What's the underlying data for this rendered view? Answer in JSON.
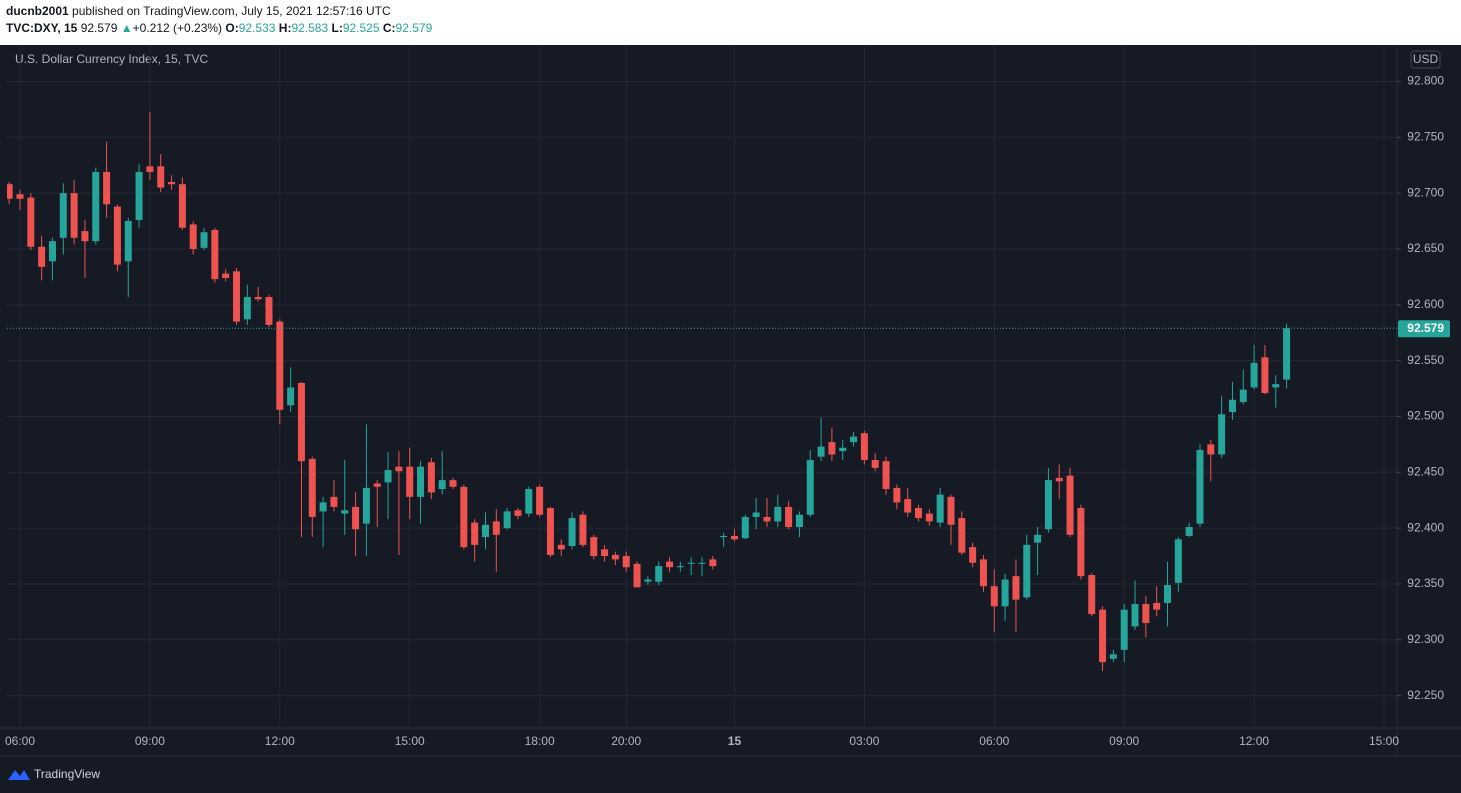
{
  "header": {
    "author": "ducnb2001",
    "published": " published on TradingView.com, July 15, 2021 12:57:16 UTC",
    "symbol": "TVC:DXY, 15",
    "price": "92.579",
    "change_arrow": "▲",
    "change": "+0.212 (+0.23%)",
    "ohlc": [
      {
        "label": "O:",
        "value": "92.533"
      },
      {
        "label": "H:",
        "value": "92.583"
      },
      {
        "label": "L:",
        "value": "92.525"
      },
      {
        "label": "C:",
        "value": "92.579"
      }
    ]
  },
  "footer": {
    "logo": "TradingView"
  },
  "chart_data": {
    "type": "candlestick",
    "title": "U.S. Dollar Currency Index, 15, TVC",
    "currency": "USD",
    "up_color": "#26a69a",
    "down_color": "#ef5350",
    "grid": true,
    "last_price": 92.579,
    "ylim": [
      92.221,
      92.83
    ],
    "yticks": [
      {
        "value": 92.25,
        "label": "92.250"
      },
      {
        "value": 92.3,
        "label": "92.300"
      },
      {
        "value": 92.35,
        "label": "92.350"
      },
      {
        "value": 92.4,
        "label": "92.400"
      },
      {
        "value": 92.45,
        "label": "92.450"
      },
      {
        "value": 92.5,
        "label": "92.500"
      },
      {
        "value": 92.55,
        "label": "92.550"
      },
      {
        "value": 92.6,
        "label": "92.600"
      },
      {
        "value": 92.65,
        "label": "92.650"
      },
      {
        "value": 92.7,
        "label": "92.700"
      },
      {
        "value": 92.75,
        "label": "92.750"
      },
      {
        "value": 92.8,
        "label": "92.800"
      }
    ],
    "xlim": [
      -0.2,
      128.2
    ],
    "xticks": [
      {
        "value": 1,
        "label": "06:00"
      },
      {
        "value": 13,
        "label": "09:00"
      },
      {
        "value": 25,
        "label": "12:00"
      },
      {
        "value": 37,
        "label": "15:00"
      },
      {
        "value": 49,
        "label": "18:00"
      },
      {
        "value": 57,
        "label": "20:00"
      },
      {
        "value": 67,
        "label": "15"
      },
      {
        "value": 79,
        "label": "03:00"
      },
      {
        "value": 91,
        "label": "06:00"
      },
      {
        "value": 103,
        "label": "09:00"
      },
      {
        "value": 115,
        "label": "12:00"
      },
      {
        "value": 127,
        "label": "15:00"
      }
    ],
    "open": [
      92.708,
      92.699,
      92.696,
      92.652,
      92.639,
      92.66,
      92.7,
      92.666,
      92.657,
      92.719,
      92.688,
      92.639,
      92.676,
      92.724,
      92.724,
      92.71,
      92.708,
      92.672,
      92.651,
      92.667,
      92.628,
      92.63,
      92.587,
      92.607,
      92.607,
      92.585,
      92.51,
      92.53,
      92.462,
      92.415,
      92.428,
      92.413,
      92.419,
      92.404,
      92.44,
      92.441,
      92.455,
      92.455,
      92.428,
      92.459,
      92.435,
      92.443,
      92.437,
      92.405,
      92.392,
      92.406,
      92.4,
      92.416,
      92.413,
      92.437,
      92.418,
      92.385,
      92.384,
      92.412,
      92.392,
      92.381,
      92.376,
      92.375,
      92.368,
      92.352,
      92.352,
      92.37,
      92.365,
      92.368,
      92.368,
      92.372,
      92.392,
      92.393,
      92.391,
      92.41,
      92.41,
      92.406,
      92.419,
      92.401,
      92.412,
      92.464,
      92.477,
      92.469,
      92.477,
      92.485,
      92.461,
      92.46,
      92.436,
      92.426,
      92.418,
      92.413,
      92.405,
      92.428,
      92.409,
      92.383,
      92.372,
      92.348,
      92.33,
      92.357,
      92.338,
      92.387,
      92.399,
      92.445,
      92.447,
      92.418,
      92.358,
      92.327,
      92.283,
      92.291,
      92.312,
      92.332,
      92.333,
      92.333,
      92.351,
      92.393,
      92.404,
      92.475,
      92.466,
      92.504,
      92.513,
      92.526,
      92.553,
      92.526,
      92.533
    ],
    "high": [
      92.71,
      92.703,
      92.7,
      92.662,
      92.66,
      92.709,
      92.712,
      92.676,
      92.723,
      92.746,
      92.69,
      92.678,
      92.726,
      92.773,
      92.735,
      92.716,
      92.714,
      92.675,
      92.669,
      92.669,
      92.632,
      92.633,
      92.618,
      92.616,
      92.609,
      92.587,
      92.544,
      92.531,
      92.464,
      92.428,
      92.443,
      92.461,
      92.432,
      92.493,
      92.443,
      92.468,
      92.469,
      92.472,
      92.46,
      92.463,
      92.469,
      92.445,
      92.439,
      92.408,
      92.414,
      92.417,
      92.418,
      92.418,
      92.437,
      92.439,
      92.419,
      92.39,
      92.414,
      92.415,
      92.394,
      92.385,
      92.379,
      92.379,
      92.37,
      92.357,
      92.37,
      92.374,
      92.37,
      92.374,
      92.374,
      92.375,
      92.396,
      92.399,
      92.412,
      92.427,
      92.427,
      92.43,
      92.424,
      92.415,
      92.47,
      92.499,
      92.49,
      92.479,
      92.486,
      92.487,
      92.467,
      92.464,
      92.439,
      92.436,
      92.421,
      92.417,
      92.436,
      92.43,
      92.415,
      92.387,
      92.376,
      92.363,
      92.359,
      92.372,
      92.394,
      92.401,
      92.454,
      92.457,
      92.454,
      92.421,
      92.36,
      92.33,
      92.291,
      92.332,
      92.353,
      92.339,
      92.348,
      92.37,
      92.392,
      92.405,
      92.475,
      92.479,
      92.518,
      92.531,
      92.542,
      92.564,
      92.564,
      92.537,
      92.583
    ],
    "low": [
      92.69,
      92.685,
      92.649,
      92.622,
      92.622,
      92.645,
      92.654,
      92.624,
      92.654,
      92.678,
      92.63,
      92.607,
      92.669,
      92.712,
      92.701,
      92.703,
      92.667,
      92.645,
      92.649,
      92.62,
      92.621,
      92.582,
      92.582,
      92.603,
      92.58,
      92.493,
      92.504,
      92.392,
      92.392,
      92.383,
      92.415,
      92.394,
      92.375,
      92.375,
      92.401,
      92.408,
      92.376,
      92.408,
      92.404,
      92.426,
      92.43,
      92.435,
      92.381,
      92.37,
      92.381,
      92.361,
      92.399,
      92.408,
      92.41,
      92.41,
      92.374,
      92.375,
      92.381,
      92.383,
      92.372,
      92.37,
      92.367,
      92.361,
      92.347,
      92.349,
      92.349,
      92.361,
      92.361,
      92.358,
      92.357,
      92.363,
      92.383,
      92.388,
      92.39,
      92.399,
      92.401,
      92.401,
      92.399,
      92.392,
      92.41,
      92.46,
      92.46,
      92.461,
      92.473,
      92.457,
      92.451,
      92.43,
      92.417,
      92.41,
      92.406,
      92.402,
      92.401,
      92.385,
      92.376,
      92.365,
      92.343,
      92.307,
      92.317,
      92.307,
      92.336,
      92.358,
      92.396,
      92.426,
      92.392,
      92.354,
      92.321,
      92.272,
      92.28,
      92.28,
      92.309,
      92.302,
      92.321,
      92.312,
      92.343,
      92.392,
      92.401,
      92.442,
      92.463,
      92.497,
      92.511,
      92.524,
      92.52,
      92.508,
      92.525
    ],
    "close": [
      92.695,
      92.695,
      92.652,
      92.634,
      92.657,
      92.7,
      92.66,
      92.657,
      92.719,
      92.69,
      92.636,
      92.675,
      92.719,
      92.719,
      92.705,
      92.708,
      92.669,
      92.65,
      92.665,
      92.623,
      92.624,
      92.585,
      92.607,
      92.605,
      92.582,
      92.506,
      92.526,
      92.46,
      92.41,
      92.423,
      92.419,
      92.416,
      92.399,
      92.436,
      92.437,
      92.452,
      92.451,
      92.428,
      92.455,
      92.432,
      92.443,
      92.437,
      92.383,
      92.385,
      92.403,
      92.394,
      92.415,
      92.411,
      92.435,
      92.412,
      92.376,
      92.381,
      92.409,
      92.385,
      92.375,
      92.375,
      92.372,
      92.365,
      92.347,
      92.354,
      92.366,
      92.365,
      92.366,
      92.369,
      92.369,
      92.366,
      92.393,
      92.39,
      92.41,
      92.414,
      92.406,
      92.419,
      92.401,
      92.412,
      92.461,
      92.473,
      92.466,
      92.472,
      92.482,
      92.461,
      92.454,
      92.435,
      92.423,
      92.414,
      92.409,
      92.406,
      92.43,
      92.403,
      92.378,
      92.369,
      92.348,
      92.33,
      92.354,
      92.336,
      92.385,
      92.394,
      92.443,
      92.442,
      92.394,
      92.357,
      92.323,
      92.28,
      92.287,
      92.327,
      92.332,
      92.315,
      92.327,
      92.349,
      92.39,
      92.401,
      92.47,
      92.466,
      92.502,
      92.515,
      92.524,
      92.548,
      92.521,
      92.529,
      92.579
    ]
  }
}
